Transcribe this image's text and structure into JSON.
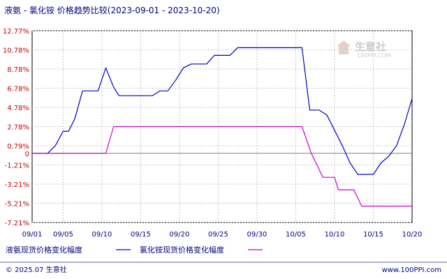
{
  "chart_data": {
    "type": "line",
    "title": "液氨 - 氯化铵 价格趋势比较(2023-09-01 - 2023-10-20)",
    "y_ticks": [
      "12.77%",
      "10.78%",
      "8.78%",
      "6.78%",
      "4.78%",
      "2.78%",
      "0.79%",
      "0",
      "-1.21%",
      "-3.21%",
      "-5.21%",
      "-7.21%"
    ],
    "x_ticks": [
      "09/01",
      "09/05",
      "09/10",
      "09/15",
      "09/20",
      "09/25",
      "09/30",
      "10/05",
      "10/10",
      "10/15",
      "10/20"
    ],
    "x_tick_days": [
      0,
      4,
      9,
      14,
      19,
      24,
      29,
      34,
      39,
      44,
      49
    ],
    "ylim": [
      -7.21,
      12.77
    ],
    "grid": true,
    "legend_position": "bottom",
    "series": [
      {
        "name": "液氨现货价格变化幅度",
        "color": "#0000cc",
        "points": [
          [
            0,
            0
          ],
          [
            2,
            0
          ],
          [
            3,
            0.8
          ],
          [
            4,
            2.3
          ],
          [
            4.7,
            2.3
          ],
          [
            5.5,
            3.6
          ],
          [
            6.5,
            6.5
          ],
          [
            8.5,
            6.5
          ],
          [
            9.5,
            8.9
          ],
          [
            10.5,
            6.9
          ],
          [
            11.2,
            6.0
          ],
          [
            15.5,
            6.0
          ],
          [
            16.5,
            6.5
          ],
          [
            17.5,
            6.5
          ],
          [
            18.5,
            7.6
          ],
          [
            19.5,
            8.9
          ],
          [
            20.5,
            9.3
          ],
          [
            22.5,
            9.3
          ],
          [
            23.5,
            10.2
          ],
          [
            25.5,
            10.2
          ],
          [
            26.5,
            11.0
          ],
          [
            34.8,
            11.0
          ],
          [
            35.8,
            4.5
          ],
          [
            37,
            4.5
          ],
          [
            38,
            4.0
          ],
          [
            39,
            2.4
          ],
          [
            40,
            0.8
          ],
          [
            41,
            -1.0
          ],
          [
            42,
            -2.2
          ],
          [
            44,
            -2.2
          ],
          [
            45,
            -1.0
          ],
          [
            46,
            -0.3
          ],
          [
            47,
            0.8
          ],
          [
            48,
            3.0
          ],
          [
            49,
            5.7
          ]
        ]
      },
      {
        "name": "氯化铵现货价格变化幅度",
        "color": "#cc00cc",
        "points": [
          [
            0,
            0
          ],
          [
            9.5,
            0
          ],
          [
            10.5,
            2.78
          ],
          [
            34.8,
            2.78
          ],
          [
            36,
            0
          ],
          [
            37.5,
            -2.5
          ],
          [
            39,
            -2.5
          ],
          [
            39.5,
            -3.8
          ],
          [
            41.5,
            -3.8
          ],
          [
            42.5,
            -5.5
          ],
          [
            49,
            -5.5
          ]
        ]
      }
    ]
  },
  "watermark": {
    "text": "生意社",
    "url": "100PPI.COM"
  },
  "footer": {
    "left": "© 2025.07 生意社",
    "right": "www.100PPI.com"
  }
}
